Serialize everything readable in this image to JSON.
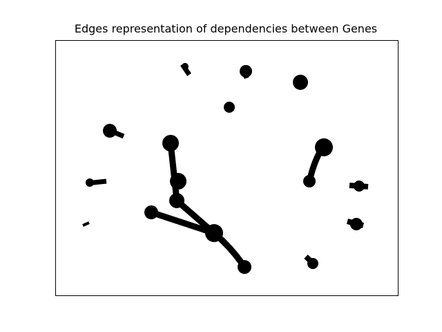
{
  "title": "Edges representation of dependencies between Genes",
  "colors": {
    "edge": "#000000",
    "node": "#000000",
    "frame": "#000000",
    "background": "#ffffff"
  },
  "diagram": {
    "type": "network-graph",
    "node_count": 18,
    "edge_count": 13
  }
}
